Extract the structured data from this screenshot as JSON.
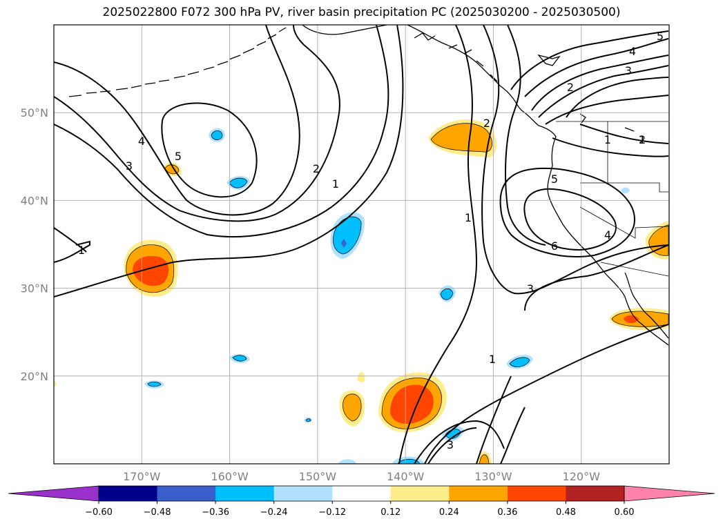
{
  "title": "2025022800 F072 300 hPa PV, river basin precipitation PC (2025030200 - 2025030500)",
  "map": {
    "lon_range": [
      -180,
      -110
    ],
    "lat_range": [
      10,
      60
    ],
    "lat_labels": [
      "50°N",
      "40°N",
      "30°N",
      "20°N"
    ],
    "lon_labels": [
      "170°W",
      "160°W",
      "150°W",
      "140°W",
      "130°W",
      "120°W"
    ],
    "gridlines": true,
    "contour_color": "#000000",
    "coast_color": "#000000"
  },
  "contour_labels": [
    "5",
    "4",
    "3",
    "2",
    "1",
    "4",
    "3",
    "5",
    "2",
    "1",
    "1",
    "2",
    "1",
    "1",
    "3",
    "5",
    "6",
    "4",
    "3",
    "1",
    "2"
  ],
  "colorbar": {
    "ticks": [
      "−0.60",
      "−0.48",
      "−0.36",
      "−0.24",
      "−0.12",
      "0.12",
      "0.24",
      "0.36",
      "0.48",
      "0.60"
    ],
    "colors": [
      "#9932cc",
      "#00008b",
      "#3a5fcd",
      "#00bfff",
      "#b0e2ff",
      "#ffffff",
      "#ffec8b",
      "#ffa500",
      "#ff4500",
      "#b22222",
      "#ff82ab"
    ]
  },
  "precip_colors": {
    "light_pos": "#ffec8b",
    "mid_pos": "#ffa500",
    "high_pos": "#ff4500",
    "light_neg": "#b0e2ff",
    "mid_neg": "#00bfff",
    "high_neg": "#3a5fcd"
  }
}
